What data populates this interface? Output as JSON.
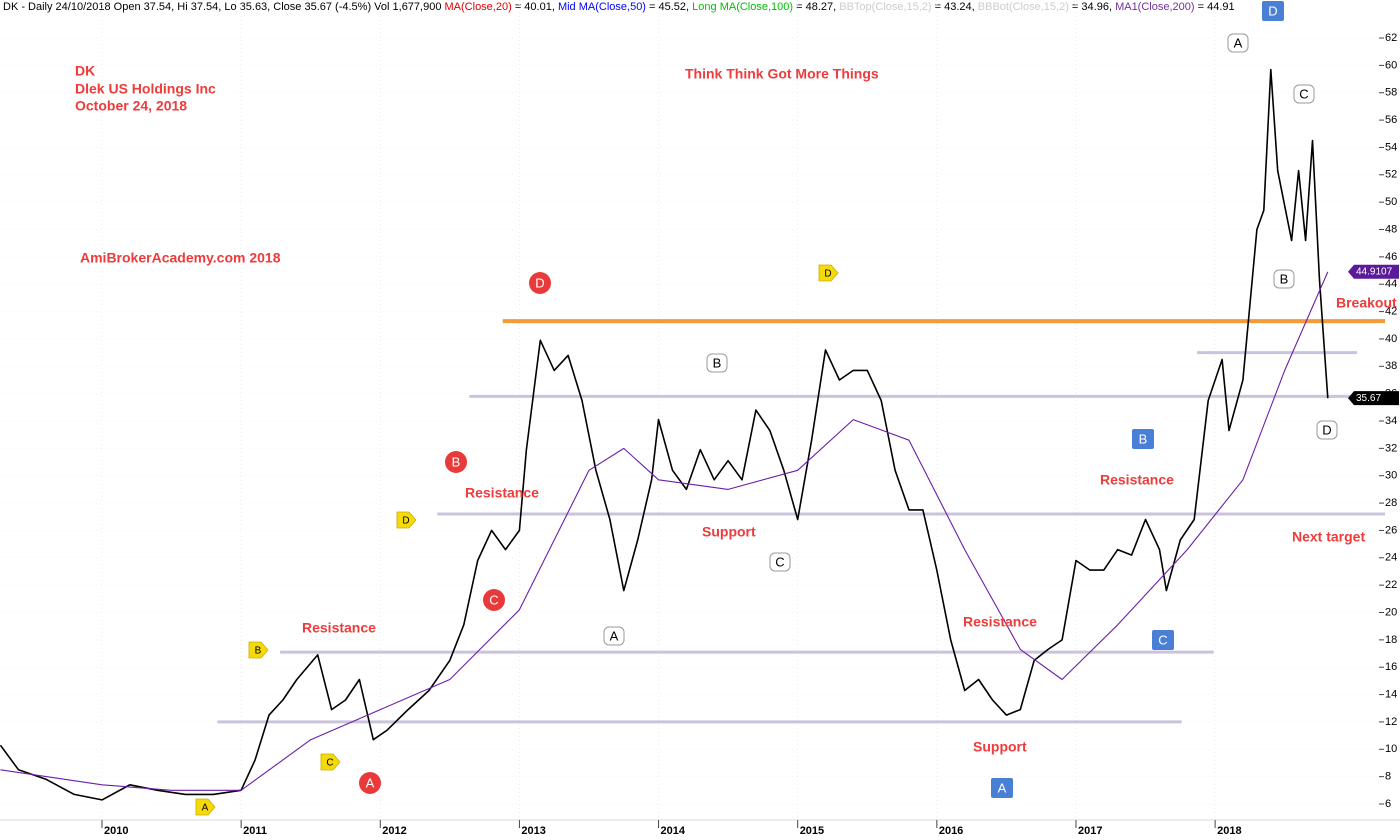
{
  "chart_data": {
    "type": "line",
    "header": [
      {
        "text": "DK - Daily 24/10/2018 Open 37.54, Hi 37.54, Lo 35.63, Close 35.67 (-4.5%) Vol 1,677,900 ",
        "color": "#000000"
      },
      {
        "text": "MA(Close,20)",
        "color": "#e00000"
      },
      {
        "text": " = 40.01, ",
        "color": "#000000"
      },
      {
        "text": "Mid MA(Close,50)",
        "color": "#0000ff"
      },
      {
        "text": " = 45.52, ",
        "color": "#000000"
      },
      {
        "text": "Long MA(Close,100)",
        "color": "#00c000"
      },
      {
        "text": " = 48.27, ",
        "color": "#000000"
      },
      {
        "text": "BBTop(Close,15,2)",
        "color": "#cccccc"
      },
      {
        "text": " = 43.24, ",
        "color": "#000000"
      },
      {
        "text": "BBBot(Close,15,2)",
        "color": "#cccccc"
      },
      {
        "text": " = 34.96, ",
        "color": "#000000"
      },
      {
        "text": "MA1(Close,200)",
        "color": "#7030a0"
      },
      {
        "text": " = 44.91",
        "color": "#000000"
      }
    ],
    "annotations": [
      "DK",
      "Dlek US Holdings Inc",
      "October 24, 2018",
      "Think Think Got More Things",
      "AmiBrokerAcademy.com  2018",
      "Resistance",
      "Resistance",
      "Support",
      "Resistance",
      "Support",
      "Resistance",
      "Breakout",
      "Next target"
    ],
    "annotation_color": "#ee3b3b",
    "xlim": [
      2009.267,
      2019.221
    ],
    "xticks": [
      2010,
      2011,
      2012,
      2013,
      2014,
      2015,
      2016,
      2017,
      2018
    ],
    "ylim": [
      4.83,
      64.78
    ],
    "yticks": [
      6,
      8,
      10,
      12,
      14,
      16,
      18,
      20,
      22,
      24,
      26,
      28,
      30,
      32,
      34,
      36,
      38,
      40,
      42,
      44,
      46,
      48,
      50,
      52,
      54,
      56,
      58,
      60,
      62
    ],
    "grid": true,
    "series": [
      {
        "color": "#000000",
        "x": [
          2009.27,
          2009.4,
          2009.6,
          2009.8,
          2010.0,
          2010.2,
          2010.4,
          2010.6,
          2010.8,
          2011.0,
          2011.1,
          2011.2,
          2011.3,
          2011.4,
          2011.55,
          2011.65,
          2011.75,
          2011.85,
          2011.95,
          2012.05,
          2012.2,
          2012.35,
          2012.5,
          2012.6,
          2012.7,
          2012.8,
          2012.9,
          2013.0,
          2013.05,
          2013.15,
          2013.25,
          2013.35,
          2013.45,
          2013.55,
          2013.65,
          2013.75,
          2013.85,
          2013.95,
          2014.0,
          2014.1,
          2014.2,
          2014.3,
          2014.4,
          2014.5,
          2014.6,
          2014.7,
          2014.8,
          2014.9,
          2015.0,
          2015.1,
          2015.2,
          2015.3,
          2015.4,
          2015.5,
          2015.6,
          2015.7,
          2015.8,
          2015.9,
          2016.0,
          2016.1,
          2016.2,
          2016.3,
          2016.4,
          2016.5,
          2016.6,
          2016.7,
          2016.8,
          2016.9,
          2017.0,
          2017.1,
          2017.2,
          2017.3,
          2017.4,
          2017.5,
          2017.6,
          2017.65,
          2017.75,
          2017.85,
          2017.95,
          2018.05,
          2018.1,
          2018.2,
          2018.3,
          2018.35,
          2018.4,
          2018.45,
          2018.55,
          2018.6,
          2018.65,
          2018.7,
          2018.75,
          2018.81
        ],
        "values": [
          10.3,
          8.5,
          7.8,
          6.7,
          6.3,
          7.4,
          7.0,
          6.7,
          6.7,
          7.0,
          9.2,
          12.5,
          13.6,
          15.1,
          16.9,
          12.9,
          13.6,
          15.1,
          10.7,
          11.4,
          12.9,
          14.3,
          16.5,
          19.1,
          23.8,
          26.0,
          24.6,
          26.0,
          31.9,
          39.9,
          37.7,
          38.8,
          35.5,
          30.4,
          26.8,
          21.6,
          25.3,
          29.7,
          34.1,
          30.4,
          29.0,
          31.9,
          29.7,
          31.1,
          29.7,
          34.8,
          33.3,
          30.4,
          26.8,
          32.6,
          39.2,
          37.0,
          37.7,
          37.7,
          35.5,
          30.4,
          27.5,
          27.5,
          23.1,
          18.0,
          14.3,
          15.1,
          13.6,
          12.5,
          12.9,
          16.5,
          17.3,
          18.0,
          23.8,
          23.1,
          23.1,
          24.6,
          24.2,
          26.8,
          24.6,
          21.6,
          25.3,
          26.8,
          35.5,
          38.5,
          33.3,
          37.0,
          48.0,
          49.4,
          59.7,
          52.3,
          47.2,
          52.3,
          47.2,
          54.5,
          44.3,
          35.67
        ]
      },
      {
        "color": "#6a1fa8",
        "x": [
          2009.27,
          2010.0,
          2010.5,
          2011.0,
          2011.5,
          2012.0,
          2012.5,
          2013.0,
          2013.5,
          2013.75,
          2014.0,
          2014.5,
          2015.0,
          2015.4,
          2015.8,
          2016.2,
          2016.6,
          2016.9,
          2017.3,
          2017.8,
          2018.2,
          2018.5,
          2018.81
        ],
        "values": [
          8.5,
          7.4,
          7.0,
          7.0,
          10.7,
          12.9,
          15.1,
          20.2,
          30.4,
          32.0,
          29.7,
          29.0,
          30.4,
          34.1,
          32.6,
          24.6,
          17.3,
          15.1,
          19.1,
          24.6,
          29.7,
          37.7,
          44.9
        ]
      }
    ],
    "levels": [
      {
        "value": 12.0,
        "from": 2010.83,
        "to": 2017.76,
        "color": "#cbc3de"
      },
      {
        "value": 17.1,
        "from": 2011.28,
        "to": 2017.99,
        "color": "#cbc3de"
      },
      {
        "value": 27.2,
        "from": 2012.41,
        "to": 2019.221,
        "color": "#cbc3de"
      },
      {
        "value": 35.8,
        "from": 2012.64,
        "to": 2019.02,
        "color": "#cbc3de"
      },
      {
        "value": 39.0,
        "from": 2017.87,
        "to": 2019.02,
        "color": "#cbc3de"
      },
      {
        "value": 41.3,
        "from": 2012.88,
        "to": 2019.221,
        "color": "#f39a3a"
      }
    ],
    "tags": [
      {
        "value": 44.9107,
        "color": "#5a1a9a"
      },
      {
        "value": 35.67,
        "color": "#000000"
      }
    ],
    "markers": [
      {
        "label": "A",
        "shape": "pentagon",
        "fill": "#f5d90a"
      },
      {
        "label": "C",
        "shape": "pentagon",
        "fill": "#f5d90a"
      },
      {
        "label": "B",
        "shape": "pentagon",
        "fill": "#f5d90a"
      },
      {
        "label": "D",
        "shape": "pentagon",
        "fill": "#f5d90a"
      },
      {
        "label": "D",
        "shape": "pentagon",
        "fill": "#f5d90a"
      },
      {
        "label": "A",
        "shape": "circle",
        "fill": "#e83a3a"
      },
      {
        "label": "C",
        "shape": "circle",
        "fill": "#e83a3a"
      },
      {
        "label": "B",
        "shape": "circle",
        "fill": "#e83a3a"
      },
      {
        "label": "D",
        "shape": "circle",
        "fill": "#e83a3a"
      },
      {
        "label": "A",
        "shape": "rounded",
        "fill": "#ffffff"
      },
      {
        "label": "C",
        "shape": "rounded",
        "fill": "#ffffff"
      },
      {
        "label": "B",
        "shape": "rounded",
        "fill": "#ffffff"
      },
      {
        "label": "A",
        "shape": "rounded",
        "fill": "#ffffff"
      },
      {
        "label": "C",
        "shape": "rounded",
        "fill": "#ffffff"
      },
      {
        "label": "B",
        "shape": "rounded",
        "fill": "#ffffff"
      },
      {
        "label": "D",
        "shape": "rounded",
        "fill": "#ffffff"
      },
      {
        "label": "A",
        "shape": "square",
        "fill": "#4a7fd6"
      },
      {
        "label": "C",
        "shape": "square",
        "fill": "#4a7fd6"
      },
      {
        "label": "B",
        "shape": "square",
        "fill": "#4a7fd6"
      },
      {
        "label": "D",
        "shape": "square",
        "fill": "#4a7fd6"
      }
    ]
  }
}
